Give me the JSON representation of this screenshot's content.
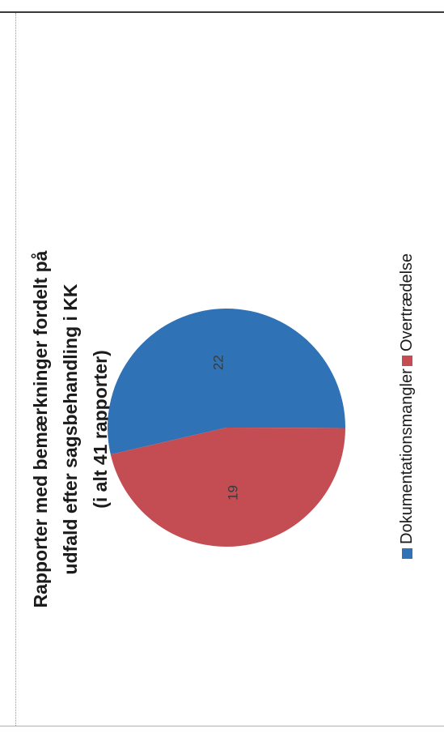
{
  "chart_data": {
    "type": "pie",
    "title_lines": [
      "Rapporter med bemærkninger fordelt på",
      "udfald efter sagsbehandling i KK",
      "(i alt 41 rapporter)"
    ],
    "categories": [
      "Dokumentationsmangler",
      "Overtrædelse"
    ],
    "values": [
      22,
      19
    ],
    "colors": [
      "#2f72b6",
      "#c34d53"
    ],
    "legend_position": "bottom"
  }
}
